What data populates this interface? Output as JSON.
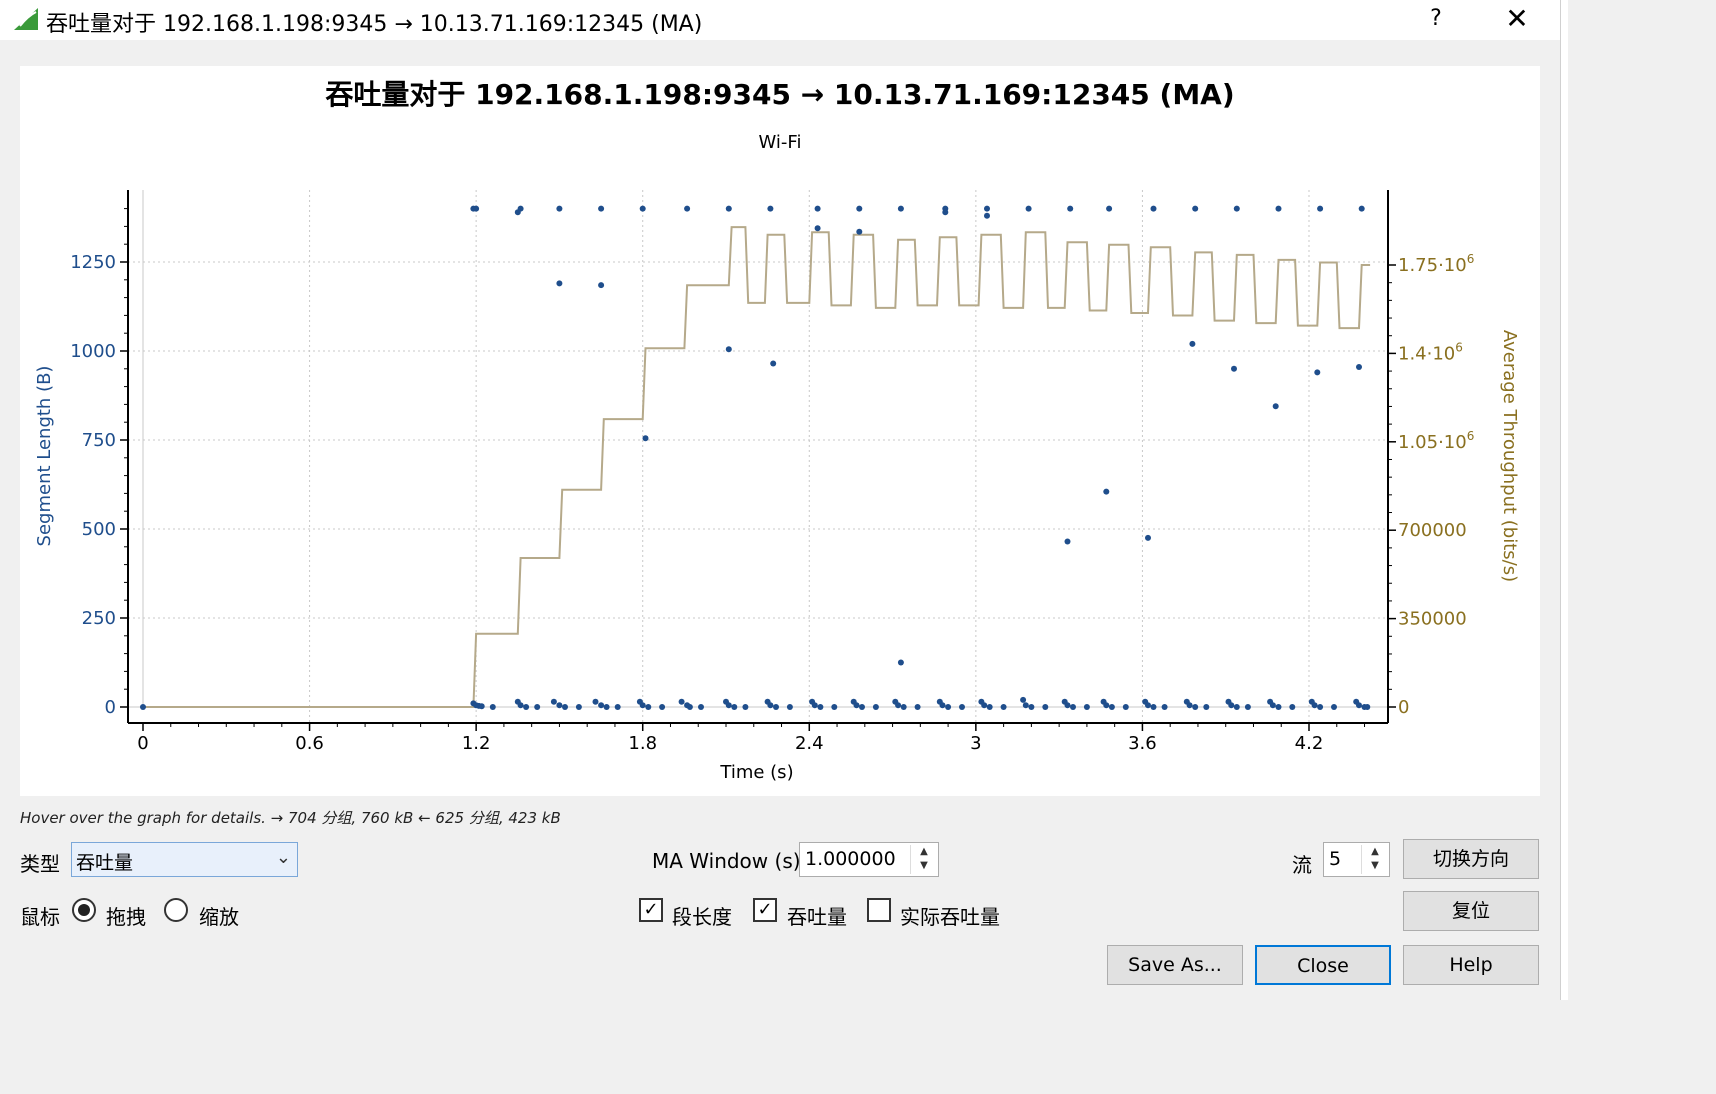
{
  "window": {
    "title": "吞吐量对于 192.168.1.198:9345 → 10.13.71.169:12345 (MA)",
    "help_glyph": "?",
    "close_glyph": "✕"
  },
  "chart_data": {
    "type": "scatter",
    "title": "吞吐量对于 192.168.1.198:9345 → 10.13.71.169:12345 (MA)",
    "subtitle": "Wi-Fi",
    "xlabel": "Time (s)",
    "ylabel": "Segment Length (B)",
    "y2label": "Average Throughput (bits/s)",
    "xlim": [
      0,
      4.45
    ],
    "ylim": [
      0,
      1400
    ],
    "y2lim": [
      0,
      1840000
    ],
    "x_ticks": [
      "0",
      "0.6",
      "1.2",
      "1.8",
      "2.4",
      "3",
      "3.6",
      "4.2"
    ],
    "y_ticks": [
      "0",
      "250",
      "500",
      "750",
      "1000",
      "1250"
    ],
    "y2_ticks": [
      {
        "base": "0",
        "exp": ""
      },
      {
        "base": "350000",
        "exp": ""
      },
      {
        "base": "700000",
        "exp": ""
      },
      {
        "base": "1.05·10",
        "exp": "6"
      },
      {
        "base": "1.4·10",
        "exp": "6"
      },
      {
        "base": "1.75·10",
        "exp": "6"
      }
    ],
    "grid": true,
    "segment_color": "#1f4e8c",
    "throughput_color": "#b5a98a",
    "right_axis_color": "#8a7020",
    "series": [
      {
        "kind": "points",
        "x": [
          0,
          1.19,
          1.2,
          1.21,
          1.22,
          1.26,
          1.35,
          1.36,
          1.38,
          1.42,
          1.48,
          1.5,
          1.52,
          1.57,
          1.63,
          1.65,
          1.67,
          1.71,
          1.79,
          1.8,
          1.82,
          1.87,
          1.94,
          1.96,
          1.97,
          2.01,
          2.1,
          2.11,
          2.13,
          2.17,
          2.25,
          2.26,
          2.28,
          2.33,
          2.41,
          2.42,
          2.44,
          2.49,
          2.56,
          2.57,
          2.59,
          2.64,
          2.71,
          2.72,
          2.74,
          2.79,
          2.87,
          2.88,
          2.9,
          2.95,
          3.02,
          3.03,
          3.05,
          3.1,
          3.17,
          3.18,
          3.2,
          3.25,
          3.32,
          3.33,
          3.35,
          3.4,
          3.46,
          3.47,
          3.49,
          3.54,
          3.61,
          3.62,
          3.64,
          3.68,
          3.76,
          3.77,
          3.79,
          3.83,
          3.91,
          3.92,
          3.94,
          3.98,
          4.06,
          4.07,
          4.09,
          4.14,
          4.21,
          4.22,
          4.24,
          4.29,
          4.37,
          4.38,
          4.4,
          4.41,
          1.19,
          1.2,
          1.36,
          1.5,
          1.65,
          1.8,
          1.96,
          2.11,
          2.26,
          2.43,
          2.58,
          2.73,
          2.89,
          3.04,
          3.19,
          3.34,
          3.48,
          3.64,
          3.79,
          3.94,
          4.09,
          4.24,
          4.39,
          1.35,
          1.5,
          1.65,
          2.11,
          2.27,
          2.43,
          2.58,
          2.89,
          3.04,
          1.81,
          2.73,
          3.33,
          3.47,
          3.62,
          3.78,
          3.93,
          4.08,
          4.23,
          4.38
        ],
        "y": [
          0,
          10,
          5,
          3,
          2,
          0,
          15,
          5,
          0,
          0,
          15,
          5,
          0,
          0,
          15,
          5,
          0,
          0,
          15,
          5,
          0,
          0,
          15,
          5,
          0,
          0,
          15,
          5,
          0,
          0,
          15,
          5,
          0,
          0,
          15,
          5,
          0,
          0,
          15,
          5,
          0,
          0,
          15,
          5,
          0,
          0,
          15,
          5,
          0,
          0,
          15,
          5,
          0,
          0,
          20,
          5,
          0,
          0,
          15,
          5,
          0,
          0,
          15,
          5,
          0,
          0,
          15,
          5,
          0,
          0,
          15,
          5,
          0,
          0,
          15,
          5,
          0,
          0,
          15,
          5,
          0,
          0,
          15,
          5,
          0,
          0,
          15,
          5,
          0,
          0,
          1400,
          1400,
          1400,
          1400,
          1400,
          1400,
          1400,
          1400,
          1400,
          1400,
          1400,
          1400,
          1400,
          1400,
          1400,
          1400,
          1400,
          1400,
          1400,
          1400,
          1400,
          1400,
          1400,
          1390,
          1190,
          1185,
          1005,
          965,
          1345,
          1335,
          1390,
          1380,
          755,
          125,
          465,
          605,
          475,
          1020,
          950,
          845,
          940,
          955
        ]
      },
      {
        "kind": "step",
        "x": [
          0,
          1.19,
          1.2,
          1.35,
          1.36,
          1.5,
          1.51,
          1.65,
          1.66,
          1.8,
          1.81,
          1.95,
          1.96,
          2.11,
          2.12,
          2.17,
          2.18,
          2.24,
          2.25,
          2.31,
          2.32,
          2.4,
          2.41,
          2.47,
          2.48,
          2.55,
          2.56,
          2.63,
          2.64,
          2.71,
          2.72,
          2.78,
          2.79,
          2.86,
          2.87,
          2.93,
          2.94,
          3.01,
          3.02,
          3.09,
          3.1,
          3.17,
          3.18,
          3.25,
          3.26,
          3.32,
          3.33,
          3.4,
          3.41,
          3.47,
          3.48,
          3.55,
          3.56,
          3.62,
          3.63,
          3.7,
          3.71,
          3.78,
          3.79,
          3.85,
          3.86,
          3.93,
          3.94,
          4.0,
          4.01,
          4.08,
          4.09,
          4.15,
          4.16,
          4.23,
          4.24,
          4.3,
          4.31,
          4.38,
          4.39,
          4.42
        ],
        "y": [
          0,
          0,
          290000,
          290000,
          590000,
          590000,
          860000,
          860000,
          1140000,
          1140000,
          1420000,
          1420000,
          1670000,
          1670000,
          1900000,
          1900000,
          1600000,
          1600000,
          1870000,
          1870000,
          1600000,
          1600000,
          1880000,
          1880000,
          1590000,
          1590000,
          1870000,
          1870000,
          1580000,
          1580000,
          1850000,
          1850000,
          1590000,
          1590000,
          1860000,
          1860000,
          1590000,
          1590000,
          1870000,
          1870000,
          1580000,
          1580000,
          1880000,
          1880000,
          1580000,
          1580000,
          1840000,
          1840000,
          1570000,
          1570000,
          1830000,
          1830000,
          1560000,
          1560000,
          1820000,
          1820000,
          1550000,
          1550000,
          1800000,
          1800000,
          1530000,
          1530000,
          1790000,
          1790000,
          1520000,
          1520000,
          1770000,
          1770000,
          1510000,
          1510000,
          1760000,
          1760000,
          1500000,
          1500000,
          1750000,
          1750000
        ]
      }
    ]
  },
  "hint": "Hover over the graph for details. → 704 分组, 760 kB ← 625 分组, 423 kB",
  "controls": {
    "type_label": "类型",
    "type_value": "吞吐量",
    "ma_label": "MA Window (s)",
    "ma_value": "1.000000",
    "stream_label": "流",
    "stream_value": "5",
    "switch_direction": "切换方向",
    "mouse_label": "鼠标",
    "drag_label": "拖拽",
    "zoom_label": "缩放",
    "seg_len_label": "段长度",
    "throughput_label": "吞吐量",
    "goodput_label": "实际吞吐量",
    "reset": "复位",
    "save_as": "Save As...",
    "close": "Close",
    "help": "Help"
  }
}
